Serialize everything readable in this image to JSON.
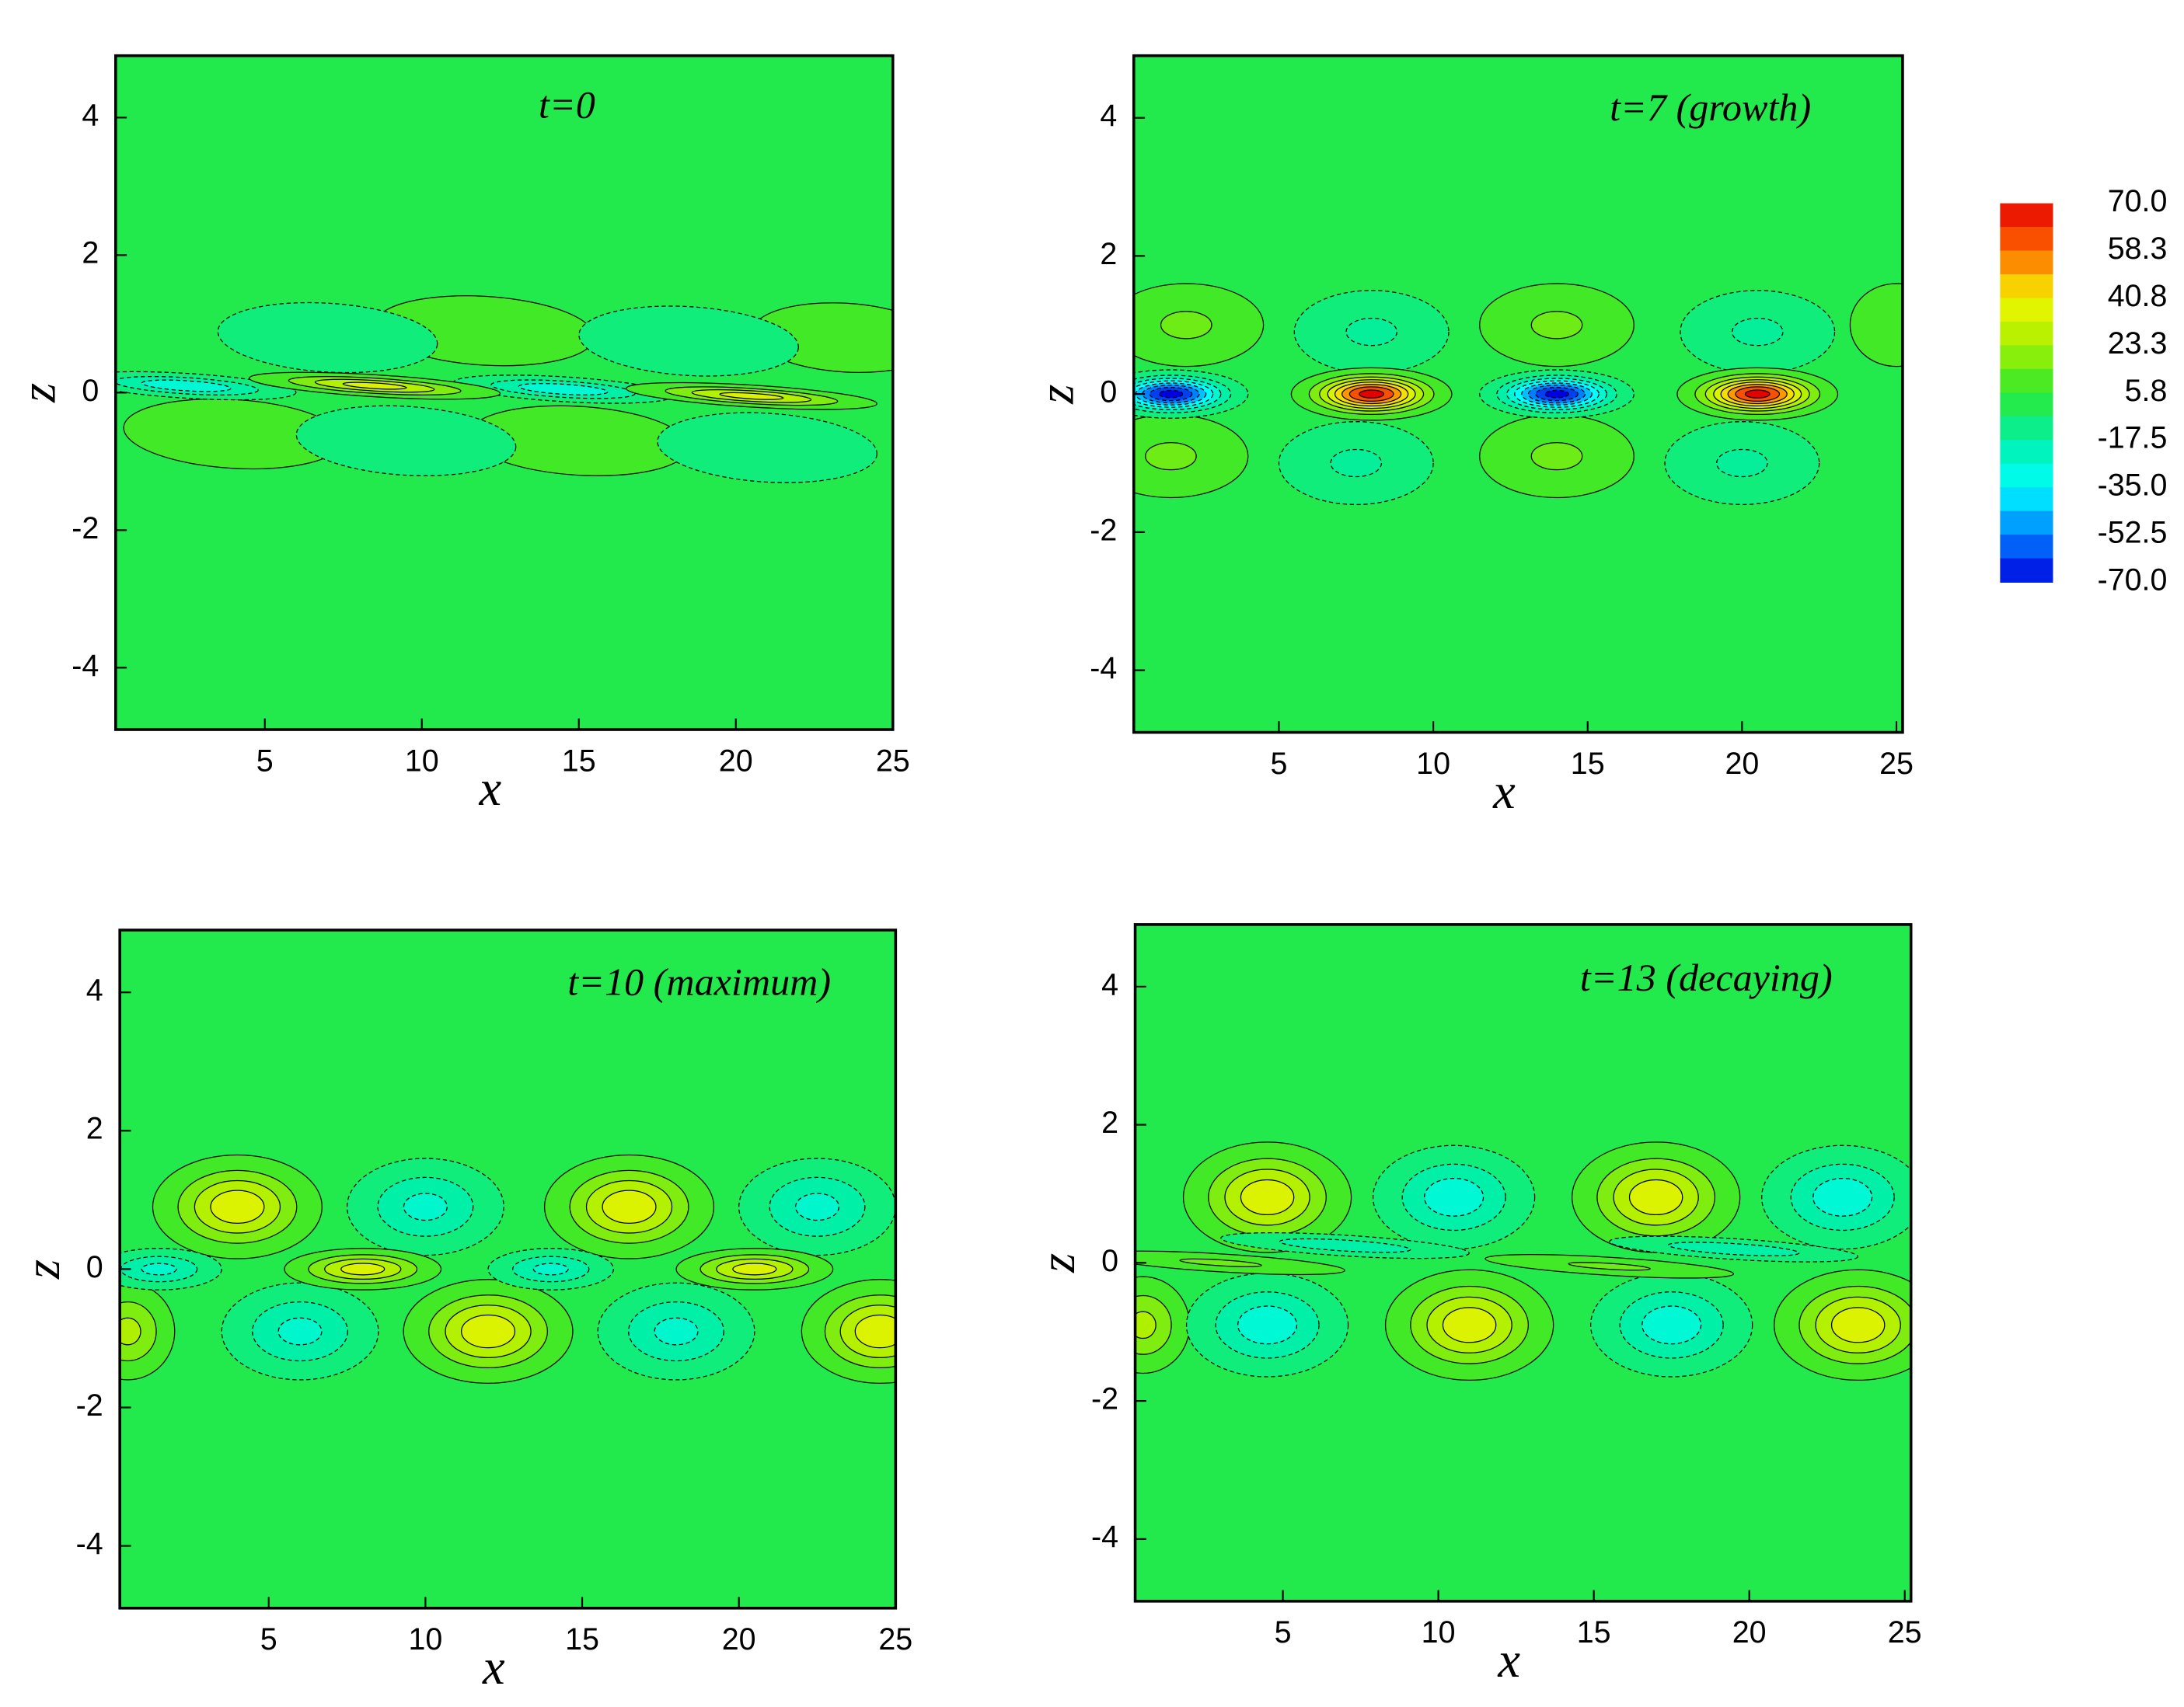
{
  "chart_data": [
    {
      "type": "contour",
      "title": "t=0",
      "x_label": "x",
      "y_label": "z",
      "xlim": [
        0.25,
        25
      ],
      "ylim": [
        -4.9,
        4.9
      ],
      "xticks": [
        5,
        10,
        15,
        20,
        25
      ],
      "yticks": [
        -4,
        -2,
        0,
        2,
        4
      ],
      "features": [
        {
          "x": 12,
          "z": 0.9,
          "value": 12,
          "rx": 3.5,
          "rz": 0.5,
          "tilt": 3.5
        },
        {
          "x": 23.5,
          "z": 0.8,
          "value": 12,
          "rx": 3,
          "rz": 0.5,
          "tilt": 3.5
        },
        {
          "x": 7,
          "z": 0.8,
          "value": -12,
          "rx": 3.5,
          "rz": 0.5,
          "tilt": 3.5
        },
        {
          "x": 18.5,
          "z": 0.75,
          "value": -12,
          "rx": 3.5,
          "rz": 0.5,
          "tilt": 3.5
        },
        {
          "x": 4,
          "z": -0.6,
          "value": 12,
          "rx": 3.5,
          "rz": 0.5,
          "tilt": 3.5
        },
        {
          "x": 15,
          "z": -0.7,
          "value": 12,
          "rx": 3.5,
          "rz": 0.5,
          "tilt": 3.5
        },
        {
          "x": 9.5,
          "z": -0.7,
          "value": -12,
          "rx": 3.5,
          "rz": 0.5,
          "tilt": 3.5
        },
        {
          "x": 21,
          "z": -0.8,
          "value": -12,
          "rx": 3.5,
          "rz": 0.5,
          "tilt": 3.5
        },
        {
          "x": 2.5,
          "z": 0.1,
          "value": -30,
          "rx": 3.5,
          "rz": 0.18,
          "tilt": 3.5
        },
        {
          "x": 14.5,
          "z": 0.05,
          "value": -30,
          "rx": 3.5,
          "rz": 0.18,
          "tilt": 3.5
        },
        {
          "x": 8.5,
          "z": 0.1,
          "value": 35,
          "rx": 4,
          "rz": 0.16,
          "tilt": 3.5
        },
        {
          "x": 20.5,
          "z": -0.05,
          "value": 35,
          "rx": 4,
          "rz": 0.16,
          "tilt": 3.5
        }
      ]
    },
    {
      "type": "contour",
      "title": "t=7 (growth)",
      "x_label": "x",
      "y_label": "z",
      "xlim": [
        0.3,
        25.2
      ],
      "ylim": [
        -4.9,
        4.9
      ],
      "xticks": [
        5,
        10,
        15,
        20,
        25
      ],
      "yticks": [
        -4,
        -2,
        0,
        2,
        4
      ],
      "features": [
        {
          "x": 2,
          "z": 1,
          "value": 15,
          "rx": 2.5,
          "rz": 0.6,
          "tilt": 0
        },
        {
          "x": 14,
          "z": 1,
          "value": 15,
          "rx": 2.5,
          "rz": 0.6,
          "tilt": 0
        },
        {
          "x": 25,
          "z": 1,
          "value": 10,
          "rx": 1.5,
          "rz": 0.6,
          "tilt": 0
        },
        {
          "x": 8,
          "z": 0.9,
          "value": -15,
          "rx": 2.5,
          "rz": 0.6,
          "tilt": 0
        },
        {
          "x": 20.5,
          "z": 0.9,
          "value": -15,
          "rx": 2.5,
          "rz": 0.6,
          "tilt": 0
        },
        {
          "x": 1.5,
          "z": -0.9,
          "value": 15,
          "rx": 2.5,
          "rz": 0.6,
          "tilt": 0
        },
        {
          "x": 14,
          "z": -0.9,
          "value": 15,
          "rx": 2.5,
          "rz": 0.6,
          "tilt": 0
        },
        {
          "x": 7.5,
          "z": -1,
          "value": -15,
          "rx": 2.5,
          "rz": 0.6,
          "tilt": 0
        },
        {
          "x": 20,
          "z": -1,
          "value": -15,
          "rx": 2.5,
          "rz": 0.6,
          "tilt": 0
        },
        {
          "x": 1.5,
          "z": 0,
          "value": -70,
          "rx": 2.5,
          "rz": 0.35,
          "tilt": 0
        },
        {
          "x": 14,
          "z": 0,
          "value": -70,
          "rx": 2.5,
          "rz": 0.35,
          "tilt": 0
        },
        {
          "x": 8,
          "z": 0,
          "value": 70,
          "rx": 2.6,
          "rz": 0.38,
          "tilt": 0
        },
        {
          "x": 20.5,
          "z": 0,
          "value": 70,
          "rx": 2.6,
          "rz": 0.38,
          "tilt": 0
        }
      ]
    },
    {
      "type": "contour",
      "title": "t=10 (maximum)",
      "x_label": "x",
      "y_label": "z",
      "xlim": [
        0.25,
        25
      ],
      "ylim": [
        -4.9,
        4.9
      ],
      "xticks": [
        5,
        10,
        15,
        20,
        25
      ],
      "yticks": [
        -4,
        -2,
        0,
        2,
        4
      ],
      "features": [
        {
          "x": 4,
          "z": 0.9,
          "value": 38,
          "rx": 2.7,
          "rz": 0.75,
          "tilt": 0
        },
        {
          "x": 16.5,
          "z": 0.9,
          "value": 38,
          "rx": 2.7,
          "rz": 0.75,
          "tilt": 0
        },
        {
          "x": 10,
          "z": 0.9,
          "value": -25,
          "rx": 2.5,
          "rz": 0.7,
          "tilt": 0
        },
        {
          "x": 22.5,
          "z": 0.9,
          "value": -25,
          "rx": 2.5,
          "rz": 0.7,
          "tilt": 0
        },
        {
          "x": 12,
          "z": -0.9,
          "value": 38,
          "rx": 2.7,
          "rz": 0.75,
          "tilt": 0
        },
        {
          "x": 24.5,
          "z": -0.9,
          "value": 38,
          "rx": 2.5,
          "rz": 0.75,
          "tilt": 0
        },
        {
          "x": 0.5,
          "z": -0.9,
          "value": 25,
          "rx": 1.5,
          "rz": 0.7,
          "tilt": 0
        },
        {
          "x": 6,
          "z": -0.9,
          "value": -25,
          "rx": 2.5,
          "rz": 0.7,
          "tilt": 0
        },
        {
          "x": 18,
          "z": -0.9,
          "value": -25,
          "rx": 2.5,
          "rz": 0.7,
          "tilt": 0
        },
        {
          "x": 1.5,
          "z": 0,
          "value": -25,
          "rx": 2,
          "rz": 0.3,
          "tilt": 0
        },
        {
          "x": 14,
          "z": 0,
          "value": -25,
          "rx": 2,
          "rz": 0.3,
          "tilt": 0
        },
        {
          "x": 8,
          "z": 0,
          "value": 36,
          "rx": 2.5,
          "rz": 0.3,
          "tilt": 0
        },
        {
          "x": 20.5,
          "z": 0,
          "value": 36,
          "rx": 2.5,
          "rz": 0.3,
          "tilt": 0
        }
      ]
    },
    {
      "type": "contour",
      "title": "t=13 (decaying)",
      "x_label": "x",
      "y_label": "z",
      "xlim": [
        0.25,
        25.2
      ],
      "ylim": [
        -4.9,
        4.9
      ],
      "xticks": [
        5,
        10,
        15,
        20,
        25
      ],
      "yticks": [
        -4,
        -2,
        0,
        2,
        4
      ],
      "features": [
        {
          "x": 4.5,
          "z": 0.95,
          "value": 38,
          "rx": 2.7,
          "rz": 0.8,
          "tilt": 0
        },
        {
          "x": 17,
          "z": 0.95,
          "value": 38,
          "rx": 2.7,
          "rz": 0.8,
          "tilt": 0
        },
        {
          "x": 10.5,
          "z": 0.95,
          "value": -28,
          "rx": 2.6,
          "rz": 0.75,
          "tilt": 0
        },
        {
          "x": 23,
          "z": 0.95,
          "value": -28,
          "rx": 2.6,
          "rz": 0.75,
          "tilt": 0
        },
        {
          "x": 11,
          "z": -0.9,
          "value": 38,
          "rx": 2.7,
          "rz": 0.8,
          "tilt": 0
        },
        {
          "x": 23.5,
          "z": -0.9,
          "value": 38,
          "rx": 2.7,
          "rz": 0.8,
          "tilt": 0
        },
        {
          "x": 0.5,
          "z": -0.9,
          "value": 25,
          "rx": 1.5,
          "rz": 0.7,
          "tilt": 0
        },
        {
          "x": 4.5,
          "z": -0.9,
          "value": -28,
          "rx": 2.6,
          "rz": 0.75,
          "tilt": 0
        },
        {
          "x": 17.5,
          "z": -0.9,
          "value": -28,
          "rx": 2.6,
          "rz": 0.75,
          "tilt": 0
        },
        {
          "x": 7,
          "z": 0.25,
          "value": -20,
          "rx": 4,
          "rz": 0.15,
          "tilt": 3.5
        },
        {
          "x": 19.5,
          "z": 0.2,
          "value": -20,
          "rx": 4,
          "rz": 0.15,
          "tilt": 3.5
        },
        {
          "x": 3,
          "z": 0,
          "value": 15,
          "rx": 4,
          "rz": 0.13,
          "tilt": 3.5
        },
        {
          "x": 15.5,
          "z": -0.05,
          "value": 15,
          "rx": 4,
          "rz": 0.13,
          "tilt": 3.5
        }
      ]
    }
  ],
  "colorbar": {
    "ticks": [
      {
        "value": 70,
        "label": "70.0"
      },
      58.3,
      40.8,
      23.3,
      5.8,
      -17.5,
      {
        "value": -35,
        "label": "-35.0"
      },
      -52.5,
      {
        "value": -70,
        "label": "-70.0"
      }
    ],
    "colors": [
      "#e60000",
      "#ff6a00",
      "#f5f500",
      "#a6f000",
      "#2ee82e",
      "#00f0a8",
      "#00ffff",
      "#0080ff",
      "#0000e0"
    ]
  }
}
